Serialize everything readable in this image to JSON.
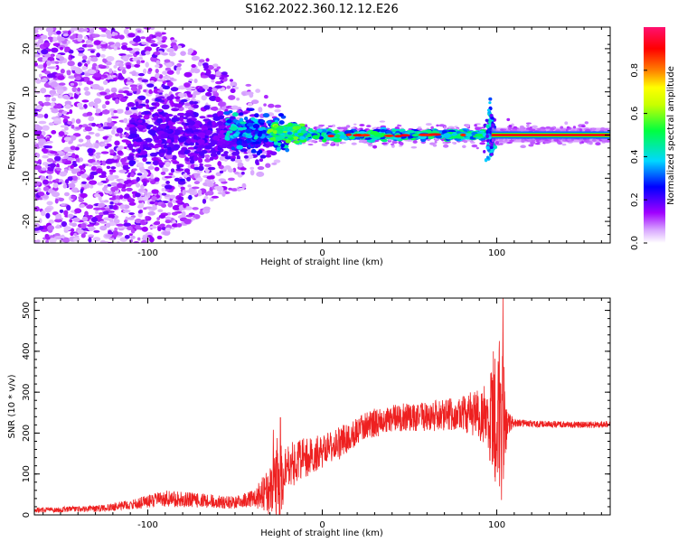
{
  "title": "S162.2022.360.12.12.E26",
  "chart_data": [
    {
      "type": "heatmap",
      "xlabel": "Height of straight line (km)",
      "ylabel": "Frequency (Hz)",
      "xlim": [
        -165,
        165
      ],
      "ylim": [
        -25,
        25
      ],
      "xticks": [
        -100,
        0,
        100
      ],
      "yticks": [
        -20,
        -10,
        0,
        10,
        20
      ],
      "grid": false,
      "description_values": {
        "ridge_frequency_hz": 0,
        "scatter_region_km": [
          -165,
          -30
        ],
        "transition_spike_km": 97
      },
      "colorbar": {
        "label": "Normalized spectral amplitude",
        "range": [
          0.0,
          1.0
        ],
        "ticks": [
          0.0,
          0.2,
          0.4,
          0.6,
          0.8
        ],
        "tick_labels": [
          "0.0",
          "0.2",
          "0.4",
          "0.6",
          "0.8"
        ],
        "colors": [
          "#ffffff",
          "#a000ff",
          "#0000ff",
          "#00d8ff",
          "#00ff40",
          "#ffff00",
          "#ff8000",
          "#ff0000",
          "#ff1070"
        ]
      }
    },
    {
      "type": "line",
      "xlabel": "Height of straight line (km)",
      "ylabel": "SNR (10 * v/v)",
      "xlim": [
        -165,
        165
      ],
      "ylim": [
        0,
        530
      ],
      "xticks": [
        -100,
        0,
        100
      ],
      "yticks": [
        0,
        100,
        200,
        300,
        400,
        500
      ],
      "grid": false,
      "color": "#ee2020",
      "envelope": {
        "x": [
          -165,
          -130,
          -110,
          -90,
          -70,
          -50,
          -40,
          -30,
          -25,
          -20,
          -10,
          0,
          10,
          20,
          30,
          40,
          50,
          60,
          70,
          80,
          90,
          95,
          100,
          103,
          106,
          110,
          130,
          150,
          165
        ],
        "mean": [
          12,
          15,
          25,
          40,
          35,
          30,
          40,
          60,
          100,
          120,
          140,
          155,
          175,
          205,
          225,
          235,
          240,
          240,
          245,
          250,
          245,
          240,
          230,
          220,
          225,
          225,
          222,
          220,
          222
        ],
        "amp": [
          6,
          8,
          12,
          20,
          18,
          15,
          20,
          60,
          110,
          60,
          50,
          40,
          40,
          35,
          35,
          35,
          35,
          35,
          40,
          45,
          60,
          90,
          180,
          220,
          30,
          10,
          8,
          8,
          8
        ]
      },
      "peaks": [
        {
          "x": 103.5,
          "y": 530
        },
        {
          "x": 101.5,
          "y": 425
        },
        {
          "x": 98.0,
          "y": 400
        },
        {
          "x": -24.0,
          "y": 238
        },
        {
          "x": -28.0,
          "y": 208
        }
      ]
    }
  ]
}
